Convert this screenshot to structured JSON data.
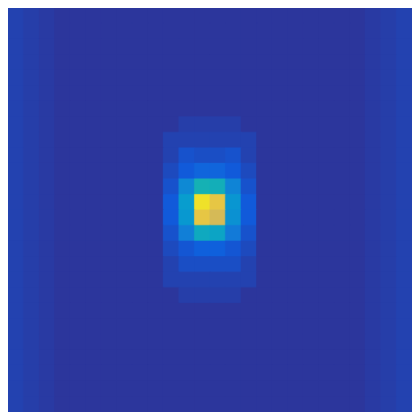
{
  "chart_data": {
    "type": "heatmap",
    "zlim": [
      0,
      1
    ],
    "grid": false,
    "tick_labels": false,
    "z": [
      [
        0.06,
        0.05,
        0.04,
        0.03,
        0.03,
        0.03,
        0.03,
        0.03,
        0.03,
        0.03,
        0.03,
        0.03,
        0.03,
        0.03,
        0.03,
        0.03,
        0.03,
        0.03,
        0.03,
        0.03,
        0.03,
        0.03,
        0.03,
        0.04,
        0.05,
        0.06
      ],
      [
        0.06,
        0.05,
        0.04,
        0.03,
        0.03,
        0.03,
        0.03,
        0.03,
        0.03,
        0.03,
        0.03,
        0.03,
        0.03,
        0.03,
        0.03,
        0.03,
        0.03,
        0.03,
        0.03,
        0.03,
        0.03,
        0.03,
        0.03,
        0.04,
        0.05,
        0.06
      ],
      [
        0.06,
        0.05,
        0.04,
        0.03,
        0.03,
        0.03,
        0.03,
        0.03,
        0.03,
        0.03,
        0.03,
        0.03,
        0.03,
        0.03,
        0.03,
        0.03,
        0.03,
        0.03,
        0.03,
        0.03,
        0.03,
        0.03,
        0.03,
        0.04,
        0.05,
        0.06
      ],
      [
        0.06,
        0.05,
        0.04,
        0.03,
        0.03,
        0.03,
        0.03,
        0.03,
        0.03,
        0.03,
        0.03,
        0.03,
        0.03,
        0.03,
        0.03,
        0.03,
        0.03,
        0.03,
        0.03,
        0.03,
        0.03,
        0.03,
        0.03,
        0.04,
        0.05,
        0.06
      ],
      [
        0.06,
        0.05,
        0.04,
        0.03,
        0.03,
        0.03,
        0.03,
        0.03,
        0.03,
        0.03,
        0.03,
        0.03,
        0.03,
        0.03,
        0.03,
        0.03,
        0.03,
        0.03,
        0.03,
        0.03,
        0.03,
        0.03,
        0.03,
        0.04,
        0.05,
        0.06
      ],
      [
        0.06,
        0.05,
        0.04,
        0.03,
        0.03,
        0.03,
        0.03,
        0.03,
        0.03,
        0.03,
        0.03,
        0.03,
        0.03,
        0.03,
        0.03,
        0.03,
        0.03,
        0.03,
        0.03,
        0.03,
        0.03,
        0.03,
        0.03,
        0.04,
        0.05,
        0.06
      ],
      [
        0.06,
        0.05,
        0.04,
        0.03,
        0.03,
        0.03,
        0.03,
        0.03,
        0.03,
        0.03,
        0.03,
        0.03,
        0.03,
        0.03,
        0.03,
        0.03,
        0.03,
        0.03,
        0.03,
        0.03,
        0.03,
        0.03,
        0.03,
        0.04,
        0.05,
        0.06
      ],
      [
        0.06,
        0.05,
        0.04,
        0.03,
        0.03,
        0.03,
        0.03,
        0.03,
        0.03,
        0.03,
        0.03,
        0.05,
        0.05,
        0.05,
        0.05,
        0.03,
        0.03,
        0.03,
        0.03,
        0.03,
        0.03,
        0.03,
        0.03,
        0.04,
        0.05,
        0.06
      ],
      [
        0.06,
        0.05,
        0.04,
        0.03,
        0.03,
        0.03,
        0.03,
        0.03,
        0.03,
        0.03,
        0.06,
        0.06,
        0.06,
        0.06,
        0.06,
        0.06,
        0.03,
        0.03,
        0.03,
        0.03,
        0.03,
        0.03,
        0.03,
        0.04,
        0.05,
        0.06
      ],
      [
        0.06,
        0.05,
        0.04,
        0.03,
        0.03,
        0.03,
        0.03,
        0.03,
        0.03,
        0.03,
        0.06,
        0.1,
        0.09,
        0.09,
        0.1,
        0.06,
        0.03,
        0.03,
        0.03,
        0.03,
        0.03,
        0.03,
        0.03,
        0.04,
        0.05,
        0.06
      ],
      [
        0.06,
        0.05,
        0.04,
        0.03,
        0.03,
        0.03,
        0.03,
        0.03,
        0.03,
        0.03,
        0.08,
        0.12,
        0.16,
        0.16,
        0.12,
        0.08,
        0.03,
        0.03,
        0.03,
        0.03,
        0.03,
        0.03,
        0.03,
        0.04,
        0.05,
        0.06
      ],
      [
        0.06,
        0.05,
        0.04,
        0.03,
        0.03,
        0.03,
        0.03,
        0.03,
        0.03,
        0.03,
        0.1,
        0.3,
        0.5,
        0.48,
        0.28,
        0.1,
        0.03,
        0.03,
        0.03,
        0.03,
        0.03,
        0.03,
        0.03,
        0.04,
        0.05,
        0.06
      ],
      [
        0.06,
        0.05,
        0.04,
        0.03,
        0.03,
        0.03,
        0.03,
        0.03,
        0.03,
        0.03,
        0.12,
        0.38,
        0.95,
        0.9,
        0.35,
        0.12,
        0.03,
        0.03,
        0.03,
        0.03,
        0.03,
        0.03,
        0.03,
        0.04,
        0.05,
        0.06
      ],
      [
        0.06,
        0.05,
        0.04,
        0.03,
        0.03,
        0.03,
        0.03,
        0.03,
        0.03,
        0.03,
        0.12,
        0.36,
        0.9,
        0.85,
        0.33,
        0.12,
        0.03,
        0.03,
        0.03,
        0.03,
        0.03,
        0.03,
        0.03,
        0.04,
        0.05,
        0.06
      ],
      [
        0.06,
        0.05,
        0.04,
        0.03,
        0.03,
        0.03,
        0.03,
        0.03,
        0.03,
        0.03,
        0.1,
        0.26,
        0.45,
        0.42,
        0.24,
        0.1,
        0.03,
        0.03,
        0.03,
        0.03,
        0.03,
        0.03,
        0.03,
        0.04,
        0.05,
        0.06
      ],
      [
        0.06,
        0.05,
        0.04,
        0.03,
        0.03,
        0.03,
        0.03,
        0.03,
        0.03,
        0.03,
        0.08,
        0.11,
        0.14,
        0.14,
        0.11,
        0.08,
        0.03,
        0.03,
        0.03,
        0.03,
        0.03,
        0.03,
        0.03,
        0.04,
        0.05,
        0.06
      ],
      [
        0.06,
        0.05,
        0.04,
        0.03,
        0.03,
        0.03,
        0.03,
        0.03,
        0.03,
        0.03,
        0.06,
        0.09,
        0.09,
        0.09,
        0.09,
        0.06,
        0.03,
        0.03,
        0.03,
        0.03,
        0.03,
        0.03,
        0.03,
        0.04,
        0.05,
        0.06
      ],
      [
        0.06,
        0.05,
        0.04,
        0.03,
        0.03,
        0.03,
        0.03,
        0.03,
        0.03,
        0.03,
        0.06,
        0.06,
        0.06,
        0.06,
        0.06,
        0.06,
        0.03,
        0.03,
        0.03,
        0.03,
        0.03,
        0.03,
        0.03,
        0.04,
        0.05,
        0.06
      ],
      [
        0.06,
        0.05,
        0.04,
        0.03,
        0.03,
        0.03,
        0.03,
        0.03,
        0.03,
        0.03,
        0.03,
        0.05,
        0.05,
        0.05,
        0.05,
        0.03,
        0.03,
        0.03,
        0.03,
        0.03,
        0.03,
        0.03,
        0.03,
        0.04,
        0.05,
        0.06
      ],
      [
        0.06,
        0.05,
        0.04,
        0.03,
        0.03,
        0.03,
        0.03,
        0.03,
        0.03,
        0.03,
        0.03,
        0.03,
        0.03,
        0.03,
        0.03,
        0.03,
        0.03,
        0.03,
        0.03,
        0.03,
        0.03,
        0.03,
        0.03,
        0.04,
        0.05,
        0.06
      ],
      [
        0.06,
        0.05,
        0.04,
        0.03,
        0.03,
        0.03,
        0.03,
        0.03,
        0.03,
        0.03,
        0.03,
        0.03,
        0.03,
        0.03,
        0.03,
        0.03,
        0.03,
        0.03,
        0.03,
        0.03,
        0.03,
        0.03,
        0.03,
        0.04,
        0.05,
        0.06
      ],
      [
        0.06,
        0.05,
        0.04,
        0.03,
        0.03,
        0.03,
        0.03,
        0.03,
        0.03,
        0.03,
        0.03,
        0.03,
        0.03,
        0.03,
        0.03,
        0.03,
        0.03,
        0.03,
        0.03,
        0.03,
        0.03,
        0.03,
        0.03,
        0.04,
        0.05,
        0.06
      ],
      [
        0.06,
        0.05,
        0.04,
        0.03,
        0.03,
        0.03,
        0.03,
        0.03,
        0.03,
        0.03,
        0.03,
        0.03,
        0.03,
        0.03,
        0.03,
        0.03,
        0.03,
        0.03,
        0.03,
        0.03,
        0.03,
        0.03,
        0.03,
        0.04,
        0.05,
        0.06
      ],
      [
        0.06,
        0.05,
        0.04,
        0.03,
        0.03,
        0.03,
        0.03,
        0.03,
        0.03,
        0.03,
        0.03,
        0.03,
        0.03,
        0.03,
        0.03,
        0.03,
        0.03,
        0.03,
        0.03,
        0.03,
        0.03,
        0.03,
        0.03,
        0.04,
        0.05,
        0.06
      ],
      [
        0.06,
        0.05,
        0.04,
        0.03,
        0.03,
        0.03,
        0.03,
        0.03,
        0.03,
        0.03,
        0.03,
        0.03,
        0.03,
        0.03,
        0.03,
        0.03,
        0.03,
        0.03,
        0.03,
        0.03,
        0.03,
        0.03,
        0.03,
        0.04,
        0.05,
        0.06
      ],
      [
        0.06,
        0.05,
        0.04,
        0.03,
        0.03,
        0.03,
        0.03,
        0.03,
        0.03,
        0.03,
        0.03,
        0.03,
        0.03,
        0.03,
        0.03,
        0.03,
        0.03,
        0.03,
        0.03,
        0.03,
        0.03,
        0.03,
        0.03,
        0.04,
        0.05,
        0.06
      ]
    ]
  }
}
